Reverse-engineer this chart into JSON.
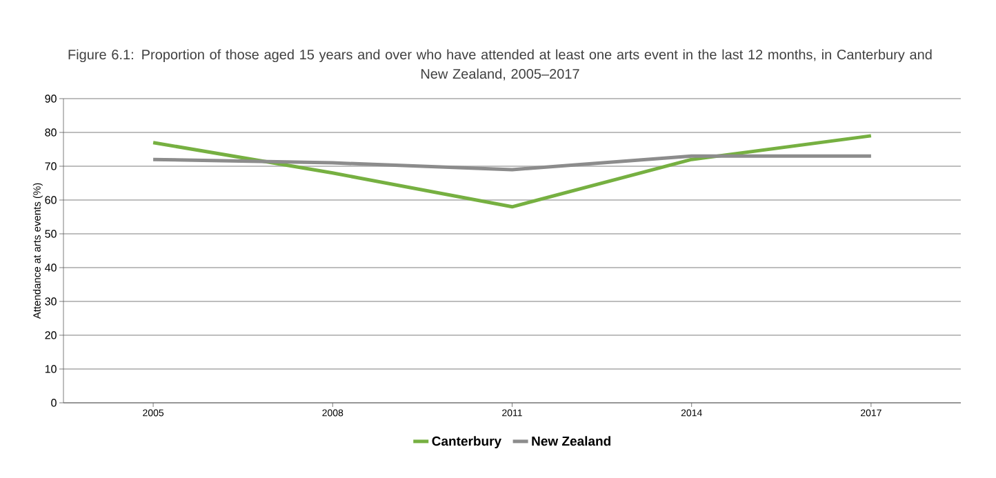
{
  "chart_data": {
    "type": "line",
    "title": "Figure 6.1: Proportion of those aged 15 years and over who have attended at least one arts event in the last 12 months, in Canterbury and New Zealand, 2005–2017",
    "ylabel": "Attendance at arts events (%)",
    "categories": [
      "2005",
      "2008",
      "2011",
      "2014",
      "2017"
    ],
    "series": [
      {
        "name": "Canterbury",
        "color": "#76b041",
        "values": [
          77,
          68,
          58,
          72,
          79
        ]
      },
      {
        "name": "New Zealand",
        "color": "#8c8c8c",
        "values": [
          72,
          71,
          69,
          73,
          73
        ]
      }
    ],
    "ylim": [
      0,
      90
    ],
    "yticks": [
      0,
      10,
      20,
      30,
      40,
      50,
      60,
      70,
      80,
      90
    ],
    "grid": "y",
    "legend": "bottom",
    "marker": "none",
    "line_style": "solid"
  }
}
